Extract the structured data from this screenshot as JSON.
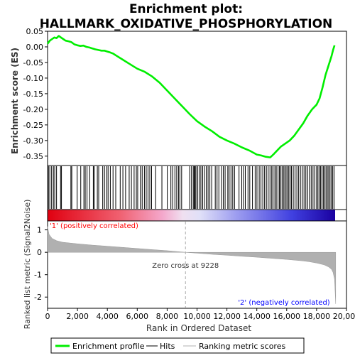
{
  "chart_data": {
    "type": "line",
    "title": "Enrichment plot:\nHALLMARK_OXIDATIVE_PHOSPHORYLATION",
    "xlabel": "Rank in Ordered Dataset",
    "xlim": [
      0,
      20000
    ],
    "x_ticks": [
      0,
      2000,
      4000,
      6000,
      8000,
      10000,
      12000,
      14000,
      16000,
      18000,
      20000
    ],
    "x_tick_labels": [
      "0",
      "2,000",
      "4,000",
      "6,000",
      "8,000",
      "10,000",
      "12,000",
      "14,000",
      "16,000",
      "18,000",
      "20,000"
    ],
    "panels": {
      "enrichment": {
        "ylabel": "Enrichment score (ES)",
        "ylim": [
          -0.38,
          0.05
        ],
        "y_ticks": [
          0.05,
          0.0,
          -0.05,
          -0.1,
          -0.15,
          -0.2,
          -0.25,
          -0.3,
          -0.35
        ],
        "y_tick_labels": [
          "0.05",
          "0.00",
          "-0.05",
          "-0.10",
          "-0.15",
          "-0.20",
          "-0.25",
          "-0.30",
          "-0.35"
        ],
        "grid": false,
        "series": [
          {
            "name": "Enrichment profile",
            "color": "#00ee00",
            "x": [
              0,
              150,
              300,
              450,
              600,
              750,
              900,
              1050,
              1200,
              1400,
              1600,
              1800,
              2000,
              2200,
              2400,
              2600,
              2800,
              3000,
              3200,
              3400,
              3600,
              3800,
              4000,
              4200,
              4400,
              4600,
              5000,
              5500,
              6000,
              6500,
              7000,
              7500,
              8000,
              8500,
              9000,
              9500,
              10000,
              10500,
              11000,
              11500,
              12000,
              12500,
              13000,
              13500,
              14000,
              14300,
              14600,
              14900,
              15100,
              15300,
              15600,
              15900,
              16200,
              16500,
              16800,
              17100,
              17400,
              17700,
              18000,
              18200,
              18400,
              18600,
              18800,
              19000,
              19100,
              19200
            ],
            "y": [
              0.01,
              0.02,
              0.025,
              0.03,
              0.028,
              0.035,
              0.03,
              0.025,
              0.02,
              0.018,
              0.015,
              0.008,
              0.005,
              0.003,
              0.004,
              0.0,
              -0.002,
              -0.005,
              -0.008,
              -0.01,
              -0.012,
              -0.012,
              -0.015,
              -0.018,
              -0.022,
              -0.028,
              -0.04,
              -0.055,
              -0.07,
              -0.08,
              -0.095,
              -0.115,
              -0.14,
              -0.165,
              -0.19,
              -0.215,
              -0.238,
              -0.255,
              -0.27,
              -0.288,
              -0.3,
              -0.31,
              -0.322,
              -0.332,
              -0.345,
              -0.348,
              -0.352,
              -0.354,
              -0.345,
              -0.335,
              -0.32,
              -0.31,
              -0.3,
              -0.285,
              -0.265,
              -0.245,
              -0.22,
              -0.2,
              -0.185,
              -0.165,
              -0.13,
              -0.09,
              -0.06,
              -0.03,
              -0.01,
              0.005
            ]
          }
        ]
      },
      "hits": {
        "label": "Hits",
        "color": "#000000",
        "positions": [
          60,
          150,
          270,
          390,
          480,
          600,
          870,
          930,
          1560,
          1620,
          1980,
          2220,
          2430,
          2520,
          2640,
          2820,
          3060,
          3120,
          3330,
          3420,
          3690,
          3810,
          3960,
          4050,
          4200,
          4380,
          4560,
          4860,
          5040,
          5220,
          5460,
          5610,
          5790,
          5940,
          6030,
          6210,
          6330,
          6480,
          6600,
          6720,
          6840,
          6960,
          7230,
          7650,
          8010,
          8250,
          8370,
          8520,
          8640,
          8760,
          8850,
          8970,
          9510,
          9630,
          9750,
          9810,
          9870,
          9930,
          10050,
          10170,
          10260,
          10380,
          10500,
          10620,
          10740,
          10860,
          10980,
          11220,
          11340,
          11460,
          11640,
          11760,
          11880,
          12060,
          12150,
          12270,
          12390,
          12510,
          12810,
          12990,
          13110,
          13230,
          13410,
          13530,
          13710,
          13890,
          14010,
          14160,
          14280,
          14400,
          14520,
          14640,
          14760,
          14880,
          15000,
          15090,
          15210,
          15300,
          15420,
          15510,
          15600,
          15690,
          15780,
          15870,
          15960,
          16050,
          16140,
          16230,
          16320,
          16440,
          16560,
          16680,
          16800,
          16920,
          17040,
          17160,
          17280,
          17400,
          17520,
          17640,
          17760,
          17880,
          18000,
          18090,
          18180,
          18270,
          18360,
          18450,
          18540,
          18630,
          18720,
          18810,
          18900,
          18990,
          19080,
          19170
        ]
      },
      "ranked_metric": {
        "label": "Ranking metric scores",
        "ylabel": "Ranked list metric (Signal2Noise)",
        "ylim": [
          -2.5,
          1.4
        ],
        "y_ticks": [
          1,
          0,
          -1,
          -2
        ],
        "y_tick_labels": [
          "1",
          "0",
          "-1",
          "-2"
        ],
        "fill_color": "#b0b0b0",
        "x": [
          0,
          100,
          300,
          600,
          1000,
          2000,
          3000,
          4000,
          5000,
          6000,
          7000,
          8000,
          9228,
          10000,
          11000,
          12000,
          13000,
          14000,
          15000,
          16000,
          17000,
          17500,
          18000,
          18500,
          18800,
          19000,
          19100,
          19200,
          19280
        ],
        "y": [
          1.15,
          0.8,
          0.62,
          0.52,
          0.45,
          0.38,
          0.32,
          0.27,
          0.22,
          0.17,
          0.12,
          0.07,
          0.0,
          -0.04,
          -0.09,
          -0.13,
          -0.18,
          -0.22,
          -0.27,
          -0.32,
          -0.38,
          -0.42,
          -0.48,
          -0.56,
          -0.65,
          -0.76,
          -0.9,
          -1.2,
          -2.3
        ]
      }
    },
    "annotations": {
      "zero_cross": "Zero cross at 9228",
      "zero_cross_rank": 9228,
      "positive_label": "'1' (positively correlated)",
      "negative_label": "'2' (negatively correlated)",
      "positive_color": "#ff0000",
      "negative_color": "#0000ff"
    },
    "legend": {
      "placement": "bottom",
      "items": [
        {
          "label": "Enrichment profile",
          "color": "#00ee00",
          "kind": "thick-line"
        },
        {
          "label": "Hits",
          "color": "#000000",
          "kind": "line"
        },
        {
          "label": "Ranking metric scores",
          "color": "#b0b0b0",
          "kind": "line"
        }
      ]
    }
  }
}
